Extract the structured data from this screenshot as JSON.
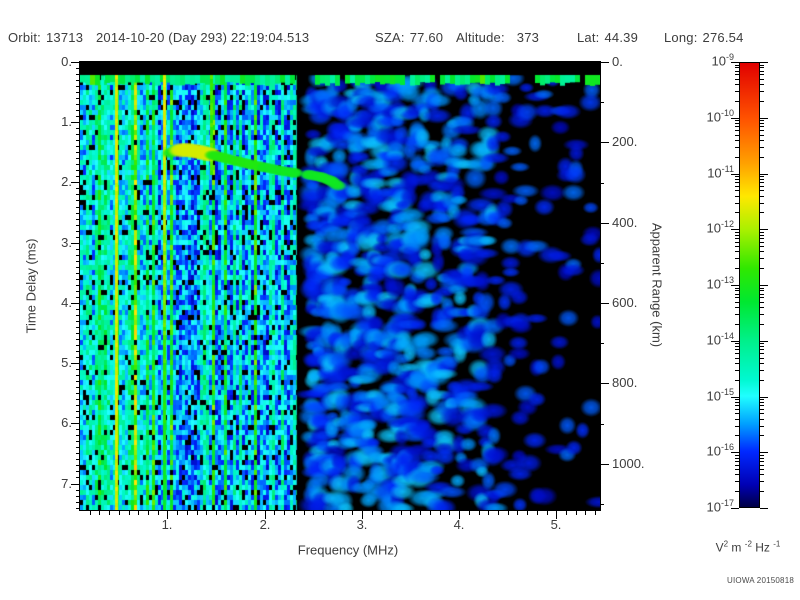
{
  "header": {
    "fields": [
      {
        "label": "Orbit:",
        "value": "13713"
      },
      {
        "label": "",
        "value": "2014-10-20 (Day 293) 22:19:04.513"
      },
      {
        "label": "SZA:",
        "value": "77.60"
      },
      {
        "label": "Altitude:",
        "value": "373"
      },
      {
        "label": "Lat:",
        "value": "44.39"
      },
      {
        "label": "Long:",
        "value": "276.54"
      }
    ]
  },
  "axes": {
    "x": {
      "label": "Frequency (MHz)",
      "ticks": [
        "1.",
        "2.",
        "3.",
        "4.",
        "5."
      ],
      "tick_values": [
        1,
        2,
        3,
        4,
        5
      ],
      "range": [
        0.1,
        5.45
      ],
      "minor_step": 0.1
    },
    "y_left": {
      "label": "Time Delay (ms)",
      "ticks": [
        "0.",
        "1.",
        "2.",
        "3.",
        "4.",
        "5.",
        "6.",
        "7."
      ],
      "tick_values": [
        0,
        1,
        2,
        3,
        4,
        5,
        6,
        7
      ],
      "range": [
        0,
        7.44
      ],
      "minor_step": 0.1
    },
    "y_right": {
      "label": "Apparent Range (km)",
      "ticks": [
        "0.",
        "200.",
        "400.",
        "600.",
        "800.",
        "1000."
      ],
      "tick_values": [
        0,
        200,
        400,
        600,
        800,
        1000
      ],
      "range": [
        0,
        1115
      ],
      "minor_step": 100
    }
  },
  "colorbar": {
    "base": "10",
    "tick_exponents": [
      "-9",
      "-10",
      "-11",
      "-12",
      "-13",
      "-14",
      "-15",
      "-16",
      "-17"
    ],
    "unit_parts": [
      [
        "V",
        "2"
      ],
      [
        " m ",
        "-2"
      ],
      [
        " Hz ",
        "-1"
      ]
    ],
    "gradient_stops": [
      {
        "v": -9.0,
        "c": "#e10000"
      },
      {
        "v": -10.0,
        "c": "#ff5200"
      },
      {
        "v": -10.8,
        "c": "#ffa000"
      },
      {
        "v": -11.4,
        "c": "#ffe800"
      },
      {
        "v": -12.0,
        "c": "#aaf000"
      },
      {
        "v": -12.7,
        "c": "#30e800"
      },
      {
        "v": -13.3,
        "c": "#00e830"
      },
      {
        "v": -14.0,
        "c": "#00f08a"
      },
      {
        "v": -14.7,
        "c": "#00f8d0"
      },
      {
        "v": -15.0,
        "c": "#20ffff"
      },
      {
        "v": -15.5,
        "c": "#00a0ff"
      },
      {
        "v": -16.0,
        "c": "#0028ff"
      },
      {
        "v": -16.6,
        "c": "#0000b4"
      },
      {
        "v": -17.0,
        "c": "#000046"
      }
    ]
  },
  "credit": "UIOWA 20150818",
  "chart_data": {
    "type": "heatmap",
    "title": "Ionogram - Orbit 13713, 2014-10-20 (Day 293) 22:19:04.513",
    "xlabel": "Frequency (MHz)",
    "x_range_mhz": [
      0.1,
      5.45
    ],
    "ylabel_left": "Time Delay (ms)",
    "y_range_ms": [
      0,
      7.44
    ],
    "ylabel_right": "Apparent Range (km)",
    "y_right_range_km": [
      0,
      1115
    ],
    "color_scale": {
      "unit": "V^2 m^-2 Hz^-1",
      "min": 1e-17,
      "max": 1e-09,
      "log": true,
      "colormap": "dark-blue to blue to cyan to green to yellow to red"
    },
    "features": {
      "direct_signal_band_delay_ms": [
        0.22,
        0.38
      ],
      "broadband_striped_noise_mhz": [
        0.1,
        2.33
      ],
      "quiet_band_mhz": [
        2.33,
        2.47
      ],
      "scattered_noise_mhz": [
        2.47,
        5.45
      ],
      "interference_lines": [
        {
          "f_mhz": 0.47,
          "strength": "strong",
          "extent": "full"
        },
        {
          "f_mhz": 0.96,
          "strength": "strong",
          "extent": "full"
        },
        {
          "f_mhz": 1.45,
          "strength": "weak",
          "extent": "top"
        }
      ],
      "echo_trace_f_mhz_delay_ms": [
        [
          1.02,
          1.52
        ],
        [
          1.08,
          1.47
        ],
        [
          1.2,
          1.46
        ],
        [
          1.32,
          1.49
        ],
        [
          1.42,
          1.53
        ],
        [
          1.55,
          1.58
        ],
        [
          1.7,
          1.64
        ],
        [
          1.85,
          1.7
        ],
        [
          2.0,
          1.75
        ],
        [
          2.15,
          1.8
        ],
        [
          2.3,
          1.84
        ],
        [
          2.45,
          1.87
        ],
        [
          2.58,
          1.91
        ],
        [
          2.68,
          1.97
        ],
        [
          2.76,
          2.06
        ]
      ]
    }
  }
}
